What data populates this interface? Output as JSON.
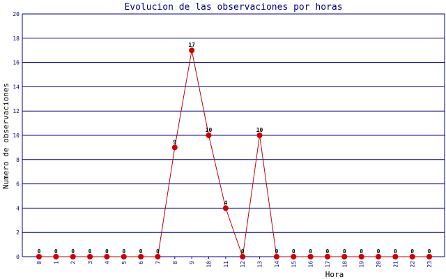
{
  "chart_data": {
    "type": "line",
    "title": "Evolucion de las observaciones por horas",
    "xlabel": "Hora",
    "ylabel": "Numero de observaciones",
    "categories": [
      "0",
      "1",
      "2",
      "3",
      "4",
      "5",
      "6",
      "7",
      "8",
      "9",
      "10",
      "11",
      "12",
      "13",
      "14",
      "15",
      "16",
      "17",
      "18",
      "19",
      "20",
      "21",
      "22",
      "23"
    ],
    "series": [
      {
        "values": [
          0,
          0,
          0,
          0,
          0,
          0,
          0,
          0,
          9,
          17,
          10,
          4,
          0,
          10,
          0,
          0,
          0,
          0,
          0,
          0,
          0,
          0,
          0,
          0
        ]
      }
    ],
    "ylim": [
      0,
      20
    ],
    "yticks": [
      "0",
      "2",
      "4",
      "6",
      "8",
      "10",
      "12",
      "14",
      "16",
      "18",
      "20"
    ],
    "grid": true,
    "colors": {
      "title": "#000080",
      "grid": "#000080",
      "line": "#c00000",
      "marker": "#cc0000",
      "axis_text": "#000080",
      "label": "#000000"
    }
  }
}
